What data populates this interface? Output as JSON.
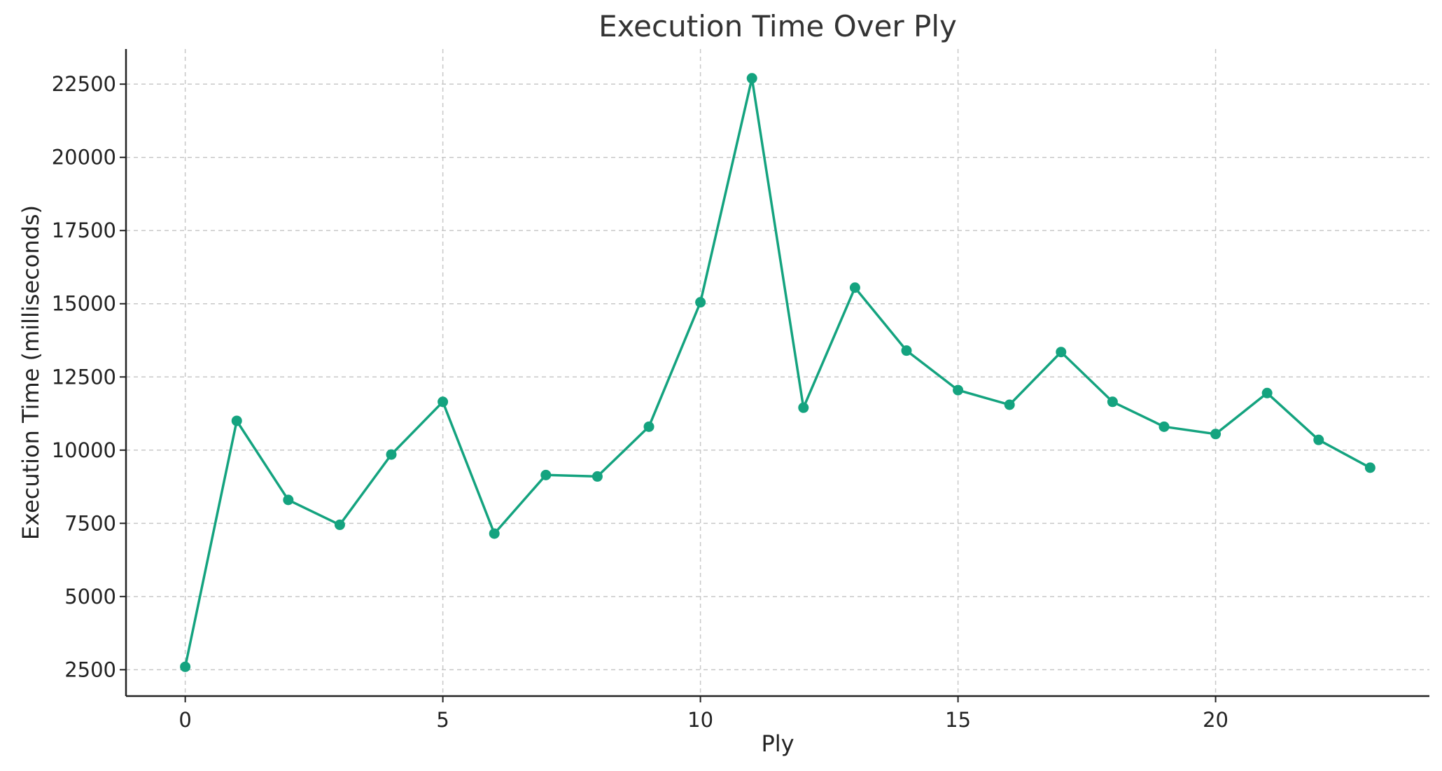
{
  "chart_data": {
    "type": "line",
    "title": "Execution Time Over Ply",
    "xlabel": "Ply",
    "ylabel": "Execution Time (milliseconds)",
    "x": [
      0,
      1,
      2,
      3,
      4,
      5,
      6,
      7,
      8,
      9,
      10,
      11,
      12,
      13,
      14,
      15,
      16,
      17,
      18,
      19,
      20,
      21,
      22,
      23
    ],
    "series": [
      {
        "values": [
          2600,
          11000,
          8300,
          7450,
          9850,
          11650,
          7150,
          9150,
          9100,
          10800,
          15050,
          22700,
          11450,
          15550,
          13400,
          12050,
          11550,
          13350,
          11650,
          10800,
          10550,
          11950,
          10350,
          9400
        ],
        "color": "#14a37f"
      }
    ],
    "xticks": [
      "0",
      "5",
      "10",
      "15",
      "20"
    ],
    "xtick_values": [
      0,
      5,
      10,
      15,
      20
    ],
    "yticks": [
      "2500",
      "5000",
      "7500",
      "10000",
      "12500",
      "15000",
      "17500",
      "20000",
      "22500"
    ],
    "ytick_values": [
      2500,
      5000,
      7500,
      10000,
      12500,
      15000,
      17500,
      20000,
      22500
    ],
    "xlim": [
      -1.15,
      24.15
    ],
    "ylim": [
      1600,
      23700
    ],
    "grid": true,
    "legend": "none"
  }
}
